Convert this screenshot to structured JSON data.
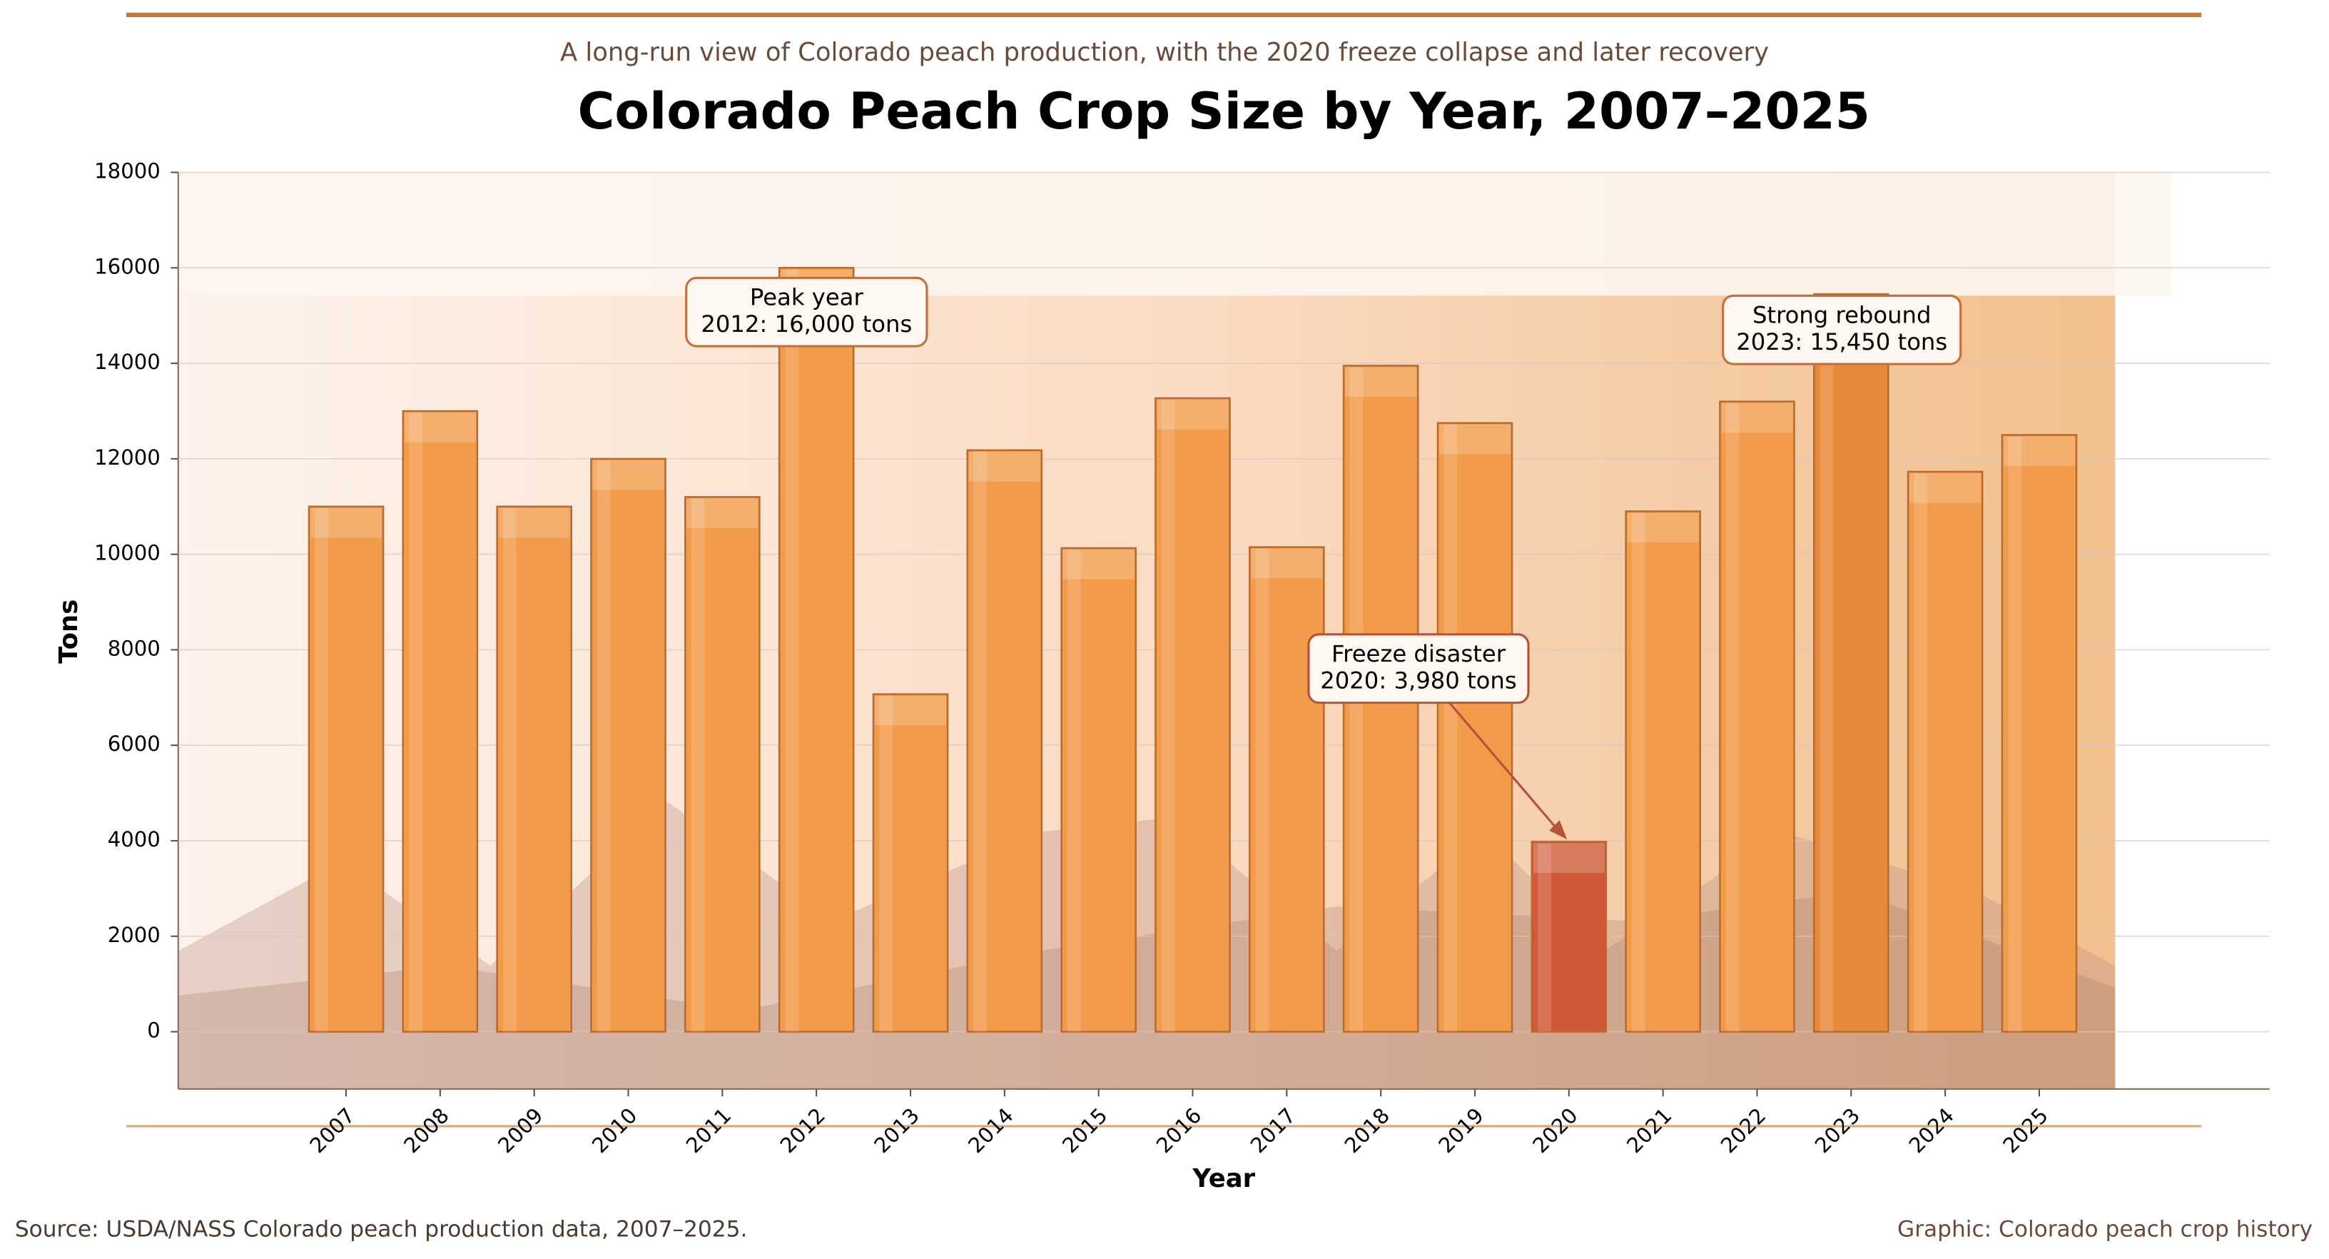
{
  "chart_data": {
    "type": "bar",
    "subtitle": "A long-run view of Colorado peach production, with the 2020 freeze collapse and later recovery",
    "title": "Colorado Peach Crop Size by Year, 2007–2025",
    "x_label": "Year",
    "y_label": "Tons",
    "categories": [
      "2007",
      "2008",
      "2009",
      "2010",
      "2011",
      "2012",
      "2013",
      "2014",
      "2015",
      "2016",
      "2017",
      "2018",
      "2019",
      "2020",
      "2021",
      "2022",
      "2023",
      "2024",
      "2025"
    ],
    "values": [
      11000,
      13000,
      11000,
      12000,
      11200,
      16000,
      7070,
      12180,
      10130,
      13270,
      10150,
      13950,
      12750,
      3980,
      10900,
      13200,
      15450,
      11730,
      12500
    ],
    "colors": [
      "#f29b4b",
      "#f29b4b",
      "#f29b4b",
      "#f29b4b",
      "#f29b4b",
      "#f29b4b",
      "#f29b4b",
      "#f29b4b",
      "#f29b4b",
      "#f29b4b",
      "#f29b4b",
      "#f29b4b",
      "#f29b4b",
      "#d05a38",
      "#f29b4b",
      "#f29b4b",
      "#e8893a",
      "#f29b4b",
      "#f29b4b"
    ],
    "ylim": [
      -1200,
      18000
    ],
    "yticks": [
      0,
      2000,
      4000,
      6000,
      8000,
      10000,
      12000,
      14000,
      16000,
      18000
    ],
    "grid": true,
    "annotations": [
      {
        "lines": [
          "Peak year",
          "2012: 16,000 tons"
        ]
      },
      {
        "lines": [
          "Freeze disaster",
          "2020: 3,980 tons"
        ]
      },
      {
        "lines": [
          "Strong rebound",
          "2023: 15,450 tons"
        ]
      }
    ],
    "source": "Source: USDA/NASS Colorado peach production data, 2007–2025.",
    "credit": "Graphic: Colorado peach crop history"
  }
}
